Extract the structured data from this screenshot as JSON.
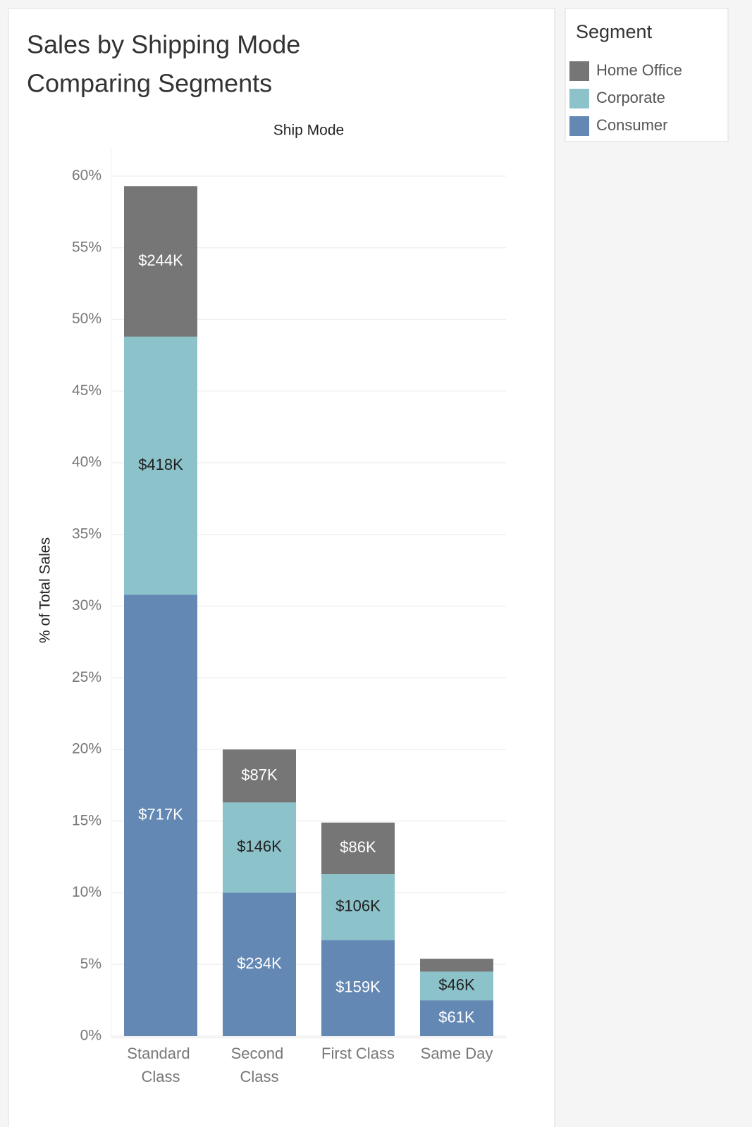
{
  "chart_data": {
    "type": "stacked_bar",
    "title": [
      "Sales by Shipping Mode",
      "Comparing Segments"
    ],
    "x_label": "Ship Mode",
    "y_label": "% of Total Sales",
    "legend_title": "Segment",
    "legend": "right",
    "categories": [
      "Standard Class",
      "Second Class",
      "First Class",
      "Same Day"
    ],
    "series": [
      {
        "name": "Consumer",
        "color": "#6388b4",
        "label_color": "#ffffff",
        "values": [
          30.8,
          10.0,
          6.7,
          2.5
        ],
        "sales_labels": [
          "$717K",
          "$234K",
          "$159K",
          "$61K"
        ]
      },
      {
        "name": "Corporate",
        "color": "#8cc2ca",
        "label_color": "#222222",
        "values": [
          18.0,
          6.3,
          4.6,
          2.0
        ],
        "sales_labels": [
          "$418K",
          "$146K",
          "$106K",
          "$46K"
        ]
      },
      {
        "name": "Home Office",
        "color": "#767676",
        "label_color": "#ffffff",
        "values": [
          10.5,
          3.7,
          3.6,
          0.9
        ],
        "sales_labels": [
          "$244K",
          "$87K",
          "$86K",
          null
        ]
      }
    ],
    "ylim": [
      0,
      60
    ],
    "yticks": [
      {
        "value": 0,
        "label": "0%"
      },
      {
        "value": 5,
        "label": "5%"
      },
      {
        "value": 10,
        "label": "10%"
      },
      {
        "value": 15,
        "label": "15%"
      },
      {
        "value": 20,
        "label": "20%"
      },
      {
        "value": 25,
        "label": "25%"
      },
      {
        "value": 30,
        "label": "30%"
      },
      {
        "value": 35,
        "label": "35%"
      },
      {
        "value": 40,
        "label": "40%"
      },
      {
        "value": 45,
        "label": "45%"
      },
      {
        "value": 50,
        "label": "50%"
      },
      {
        "value": 55,
        "label": "55%"
      },
      {
        "value": 60,
        "label": "60%"
      }
    ],
    "grid": true
  }
}
